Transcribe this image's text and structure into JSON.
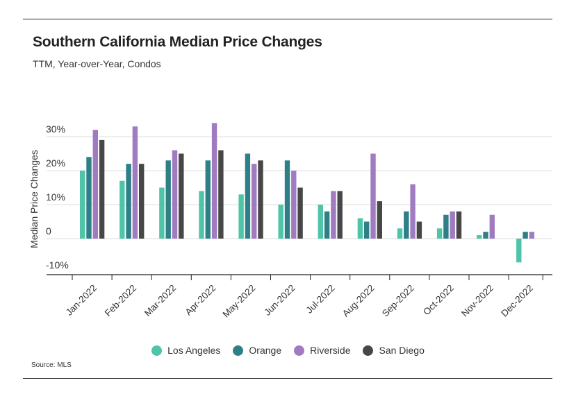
{
  "title": "Southern California Median Price Changes",
  "subtitle": "TTM, Year-over-Year, Condos",
  "source": "Source: MLS",
  "colors": {
    "los_angeles": "#4fc4a8",
    "orange": "#2e7f86",
    "riverside": "#a07bc0",
    "san_diego": "#474747"
  },
  "chart_data": {
    "type": "bar",
    "title": "Southern California Median Price Changes",
    "subtitle": "TTM, Year-over-Year, Condos",
    "xlabel": "",
    "ylabel": "Median Price Changes",
    "ylim": [
      -10,
      30
    ],
    "yticks": [
      {
        "value": 30,
        "label": "30%"
      },
      {
        "value": 20,
        "label": "20%"
      },
      {
        "value": 10,
        "label": "10%"
      },
      {
        "value": 0,
        "label": "0"
      },
      {
        "value": -10,
        "label": "-10%"
      }
    ],
    "grid": true,
    "legend_position": "bottom",
    "categories": [
      "Jan-2022",
      "Feb-2022",
      "Mar-2022",
      "Apr-2022",
      "May-2022",
      "Jun-2022",
      "Jul-2022",
      "Aug-2022",
      "Sep-2022",
      "Oct-2022",
      "Nov-2022",
      "Dec-2022"
    ],
    "series": [
      {
        "name": "Los Angeles",
        "key": "los_angeles",
        "values": [
          20,
          17,
          15,
          14,
          13,
          10,
          10,
          6,
          3,
          3,
          1,
          -7
        ]
      },
      {
        "name": "Orange",
        "key": "orange",
        "values": [
          24,
          22,
          23,
          23,
          25,
          23,
          8,
          5,
          8,
          7,
          2,
          2
        ]
      },
      {
        "name": "Riverside",
        "key": "riverside",
        "values": [
          32,
          33,
          26,
          34,
          22,
          20,
          14,
          25,
          16,
          8,
          7,
          2
        ]
      },
      {
        "name": "San Diego",
        "key": "san_diego",
        "values": [
          29,
          22,
          25,
          26,
          23,
          15,
          14,
          11,
          5,
          8,
          0,
          0
        ]
      }
    ]
  }
}
